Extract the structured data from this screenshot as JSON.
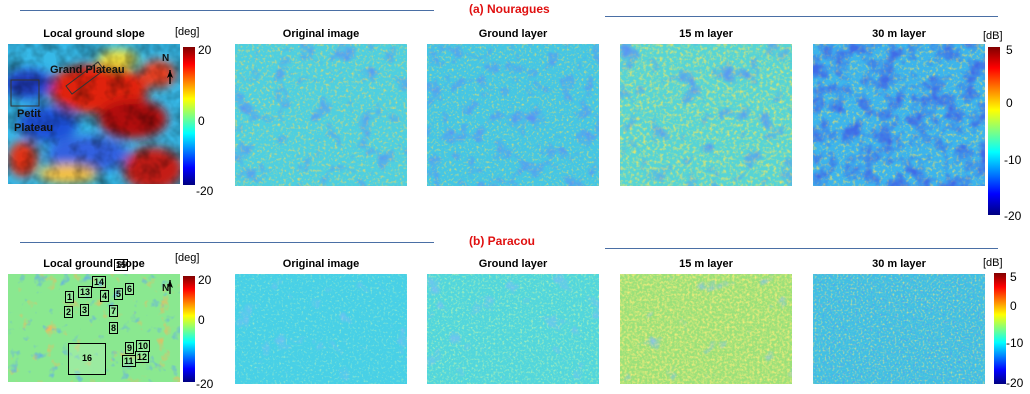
{
  "rows": [
    {
      "section_title": "(a) Nouragues",
      "slope_title": "Local ground slope",
      "slope_unit": "[deg]",
      "slope_ticks": [
        "20",
        "0",
        "-20"
      ],
      "db_unit": "[dB]",
      "db_ticks": [
        "5",
        "0",
        "-10",
        "-20"
      ],
      "panel_titles": [
        "Original image",
        "Ground layer",
        "15 m layer",
        "30 m layer"
      ],
      "annotations": {
        "grand_plateau": "Grand Plateau",
        "petit": "Petit",
        "plateau": "Plateau",
        "north": "N"
      }
    },
    {
      "section_title": "(b) Paracou",
      "slope_title": "Local ground slope",
      "slope_unit": "[deg]",
      "slope_ticks": [
        "20",
        "0",
        "-20"
      ],
      "db_unit": "[dB]",
      "db_ticks": [
        "5",
        "0",
        "-10",
        "-20"
      ],
      "panel_titles": [
        "Original image",
        "Ground layer",
        "15 m layer",
        "30 m layer"
      ],
      "annotations": {
        "north": "N"
      },
      "plots": [
        "1",
        "2",
        "3",
        "4",
        "5",
        "6",
        "7",
        "8",
        "9",
        "10",
        "11",
        "12",
        "13",
        "14",
        "15",
        "16"
      ]
    }
  ],
  "colors": {
    "section_title": "#e01010",
    "rule": "#4a6fa5"
  }
}
